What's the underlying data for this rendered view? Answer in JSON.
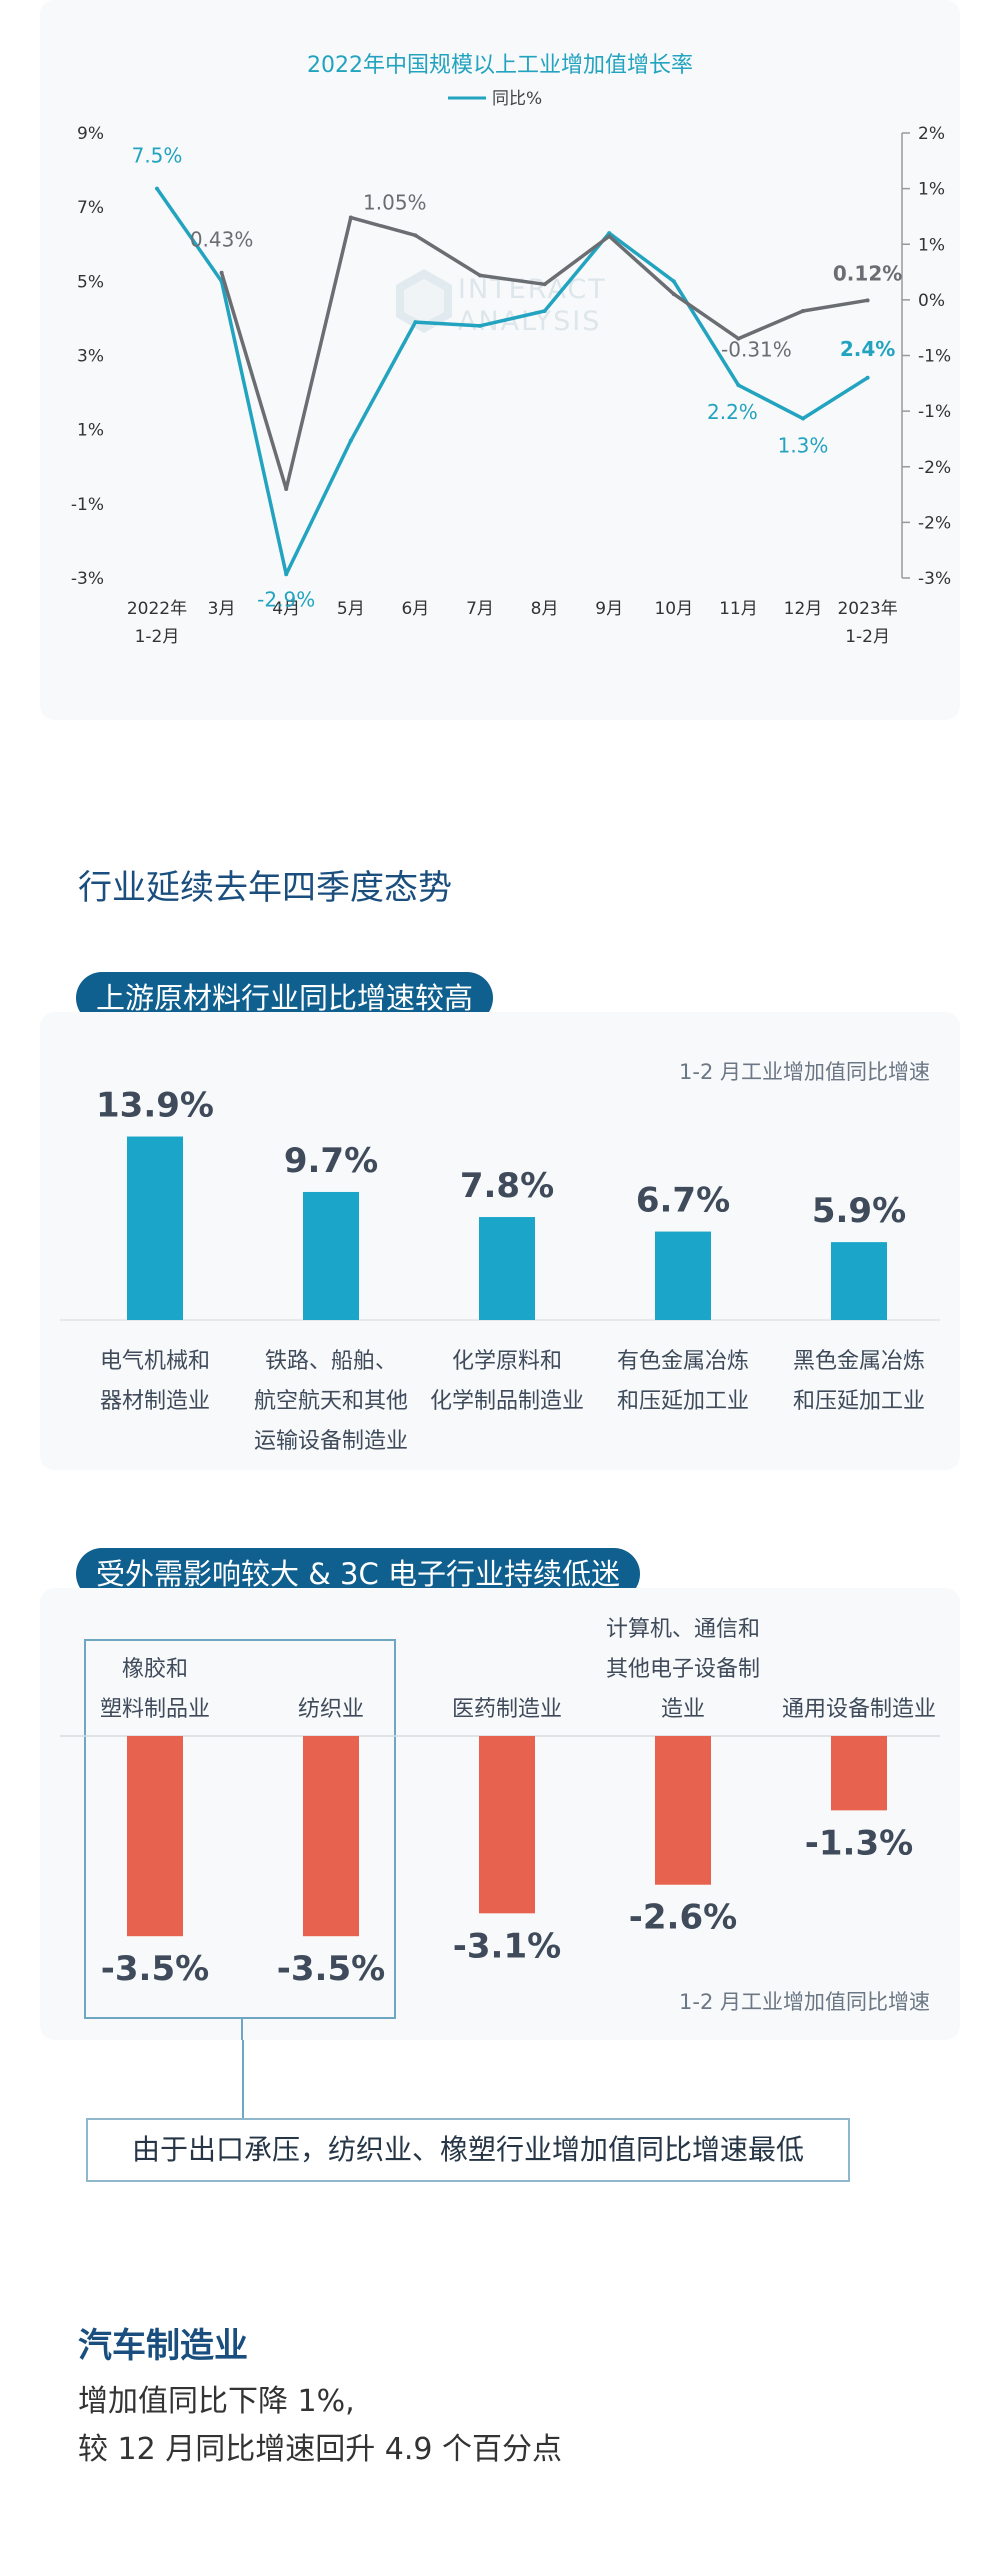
{
  "line_chart": {
    "title": "2022年中国规模以上工业增加值增长率",
    "legend": "同比%",
    "watermark": [
      "INTERACT",
      "ANALYSIS"
    ],
    "colors": {
      "teal": "#22a3bf",
      "gray": "#6a6e73"
    },
    "left_ticks": [
      "9%",
      "7%",
      "5%",
      "3%",
      "1%",
      "-1%",
      "-3%"
    ],
    "right_ticks": [
      "2%",
      "1%",
      "1%",
      "0%",
      "-1%",
      "-1%",
      "-2%",
      "-2%",
      "-3%"
    ],
    "x_labels": [
      [
        "2022年",
        "1-2月"
      ],
      [
        "3月"
      ],
      [
        "4月"
      ],
      [
        "5月"
      ],
      [
        "6月"
      ],
      [
        "7月"
      ],
      [
        "8月"
      ],
      [
        "9月"
      ],
      [
        "10月"
      ],
      [
        "11月"
      ],
      [
        "12月"
      ],
      [
        "2023年",
        "1-2月"
      ]
    ]
  },
  "chart_data": [
    {
      "type": "line",
      "title": "2022年中国规模以上工业增加值增长率",
      "x": [
        "2022年1-2月",
        "3月",
        "4月",
        "5月",
        "6月",
        "7月",
        "8月",
        "9月",
        "10月",
        "11月",
        "12月",
        "2023年1-2月"
      ],
      "series": [
        {
          "name": "同比%",
          "axis": "left",
          "color": "#22a3bf",
          "values": [
            7.5,
            5.0,
            -2.9,
            0.7,
            3.9,
            3.8,
            4.2,
            6.3,
            5.0,
            2.2,
            1.3,
            2.4
          ],
          "labels": [
            {
              "index": 0,
              "text": "7.5%"
            },
            {
              "index": 2,
              "text": "-2.9%"
            },
            {
              "index": 9,
              "text": "2.2%"
            },
            {
              "index": 10,
              "text": "1.3%"
            },
            {
              "index": 11,
              "text": "2.4%"
            }
          ]
        },
        {
          "axis": "right",
          "color": "#6a6e73",
          "values": [
            null,
            0.43,
            -2.0,
            1.05,
            0.85,
            0.4,
            0.3,
            0.84,
            0.19,
            -0.31,
            0.0,
            0.12
          ],
          "labels": [
            {
              "index": 1,
              "text": "0.43%"
            },
            {
              "index": 3,
              "text": "1.05%"
            },
            {
              "index": 9,
              "text": "-0.31%"
            },
            {
              "index": 11,
              "text": "0.12%"
            }
          ]
        }
      ],
      "ylim_left": [
        -3,
        9
      ],
      "ylim_right": [
        -3,
        2
      ],
      "grid": false,
      "legend": "top-center"
    },
    {
      "type": "bar",
      "title": "1-2 月工业增加值同比增速",
      "categories": [
        "电气机械和器材制造业",
        "铁路、船舶、航空航天和其他运输设备制造业",
        "化学原料和化学制品制造业",
        "有色金属冶炼和压延加工业",
        "黑色金属冶炼和压延加工业"
      ],
      "values": [
        13.9,
        9.7,
        7.8,
        6.7,
        5.9
      ],
      "color": "#1ba6c9"
    },
    {
      "type": "bar",
      "title": "1-2 月工业增加值同比增速",
      "categories": [
        "橡胶和塑料制品业",
        "纺织业",
        "医药制造业",
        "计算机、通信和其他电子设备制造业",
        "通用设备制造业"
      ],
      "values": [
        -3.5,
        -3.5,
        -3.1,
        -2.6,
        -1.3
      ],
      "color": "#e8634f"
    }
  ],
  "section_title": "行业延续去年四季度态势",
  "upstream": {
    "pill": "上游原材料行业同比增速较高",
    "note": "1-2 月工业增加值同比增速",
    "color": "#1ba6c9",
    "bars": [
      {
        "value": 13.9,
        "value_label": "13.9%",
        "name_lines": [
          "电气机械和",
          "器材制造业"
        ]
      },
      {
        "value": 9.7,
        "value_label": "9.7%",
        "name_lines": [
          "铁路、船舶、",
          "航空航天和其他",
          "运输设备制造业"
        ]
      },
      {
        "value": 7.8,
        "value_label": "7.8%",
        "name_lines": [
          "化学原料和",
          "化学制品制造业"
        ]
      },
      {
        "value": 6.7,
        "value_label": "6.7%",
        "name_lines": [
          "有色金属冶炼",
          "和压延加工业"
        ]
      },
      {
        "value": 5.9,
        "value_label": "5.9%",
        "name_lines": [
          "黑色金属冶炼",
          "和压延加工业"
        ]
      }
    ]
  },
  "downstream": {
    "pill": "受外需影响较大 & 3C 电子行业持续低迷",
    "note": "1-2 月工业增加值同比增速",
    "color": "#e8634f",
    "bars": [
      {
        "value": -3.5,
        "value_label": "-3.5%",
        "name_lines": [
          "橡胶和",
          "塑料制品业"
        ]
      },
      {
        "value": -3.5,
        "value_label": "-3.5%",
        "name_lines": [
          "纺织业"
        ]
      },
      {
        "value": -3.1,
        "value_label": "-3.1%",
        "name_lines": [
          "医药制造业"
        ]
      },
      {
        "value": -2.6,
        "value_label": "-2.6%",
        "name_lines": [
          "计算机、通信和",
          "其他电子设备制",
          "造业"
        ]
      },
      {
        "value": -1.3,
        "value_label": "-1.3%",
        "name_lines": [
          "通用设备制造业"
        ]
      }
    ],
    "callout": "由于出口承压，纺织业、橡塑行业增加值同比增速最低"
  },
  "auto": {
    "title": "汽车制造业",
    "lines": [
      "增加值同比下降 1%,",
      "较 12 月同比增速回升 4.9 个百分点"
    ]
  }
}
